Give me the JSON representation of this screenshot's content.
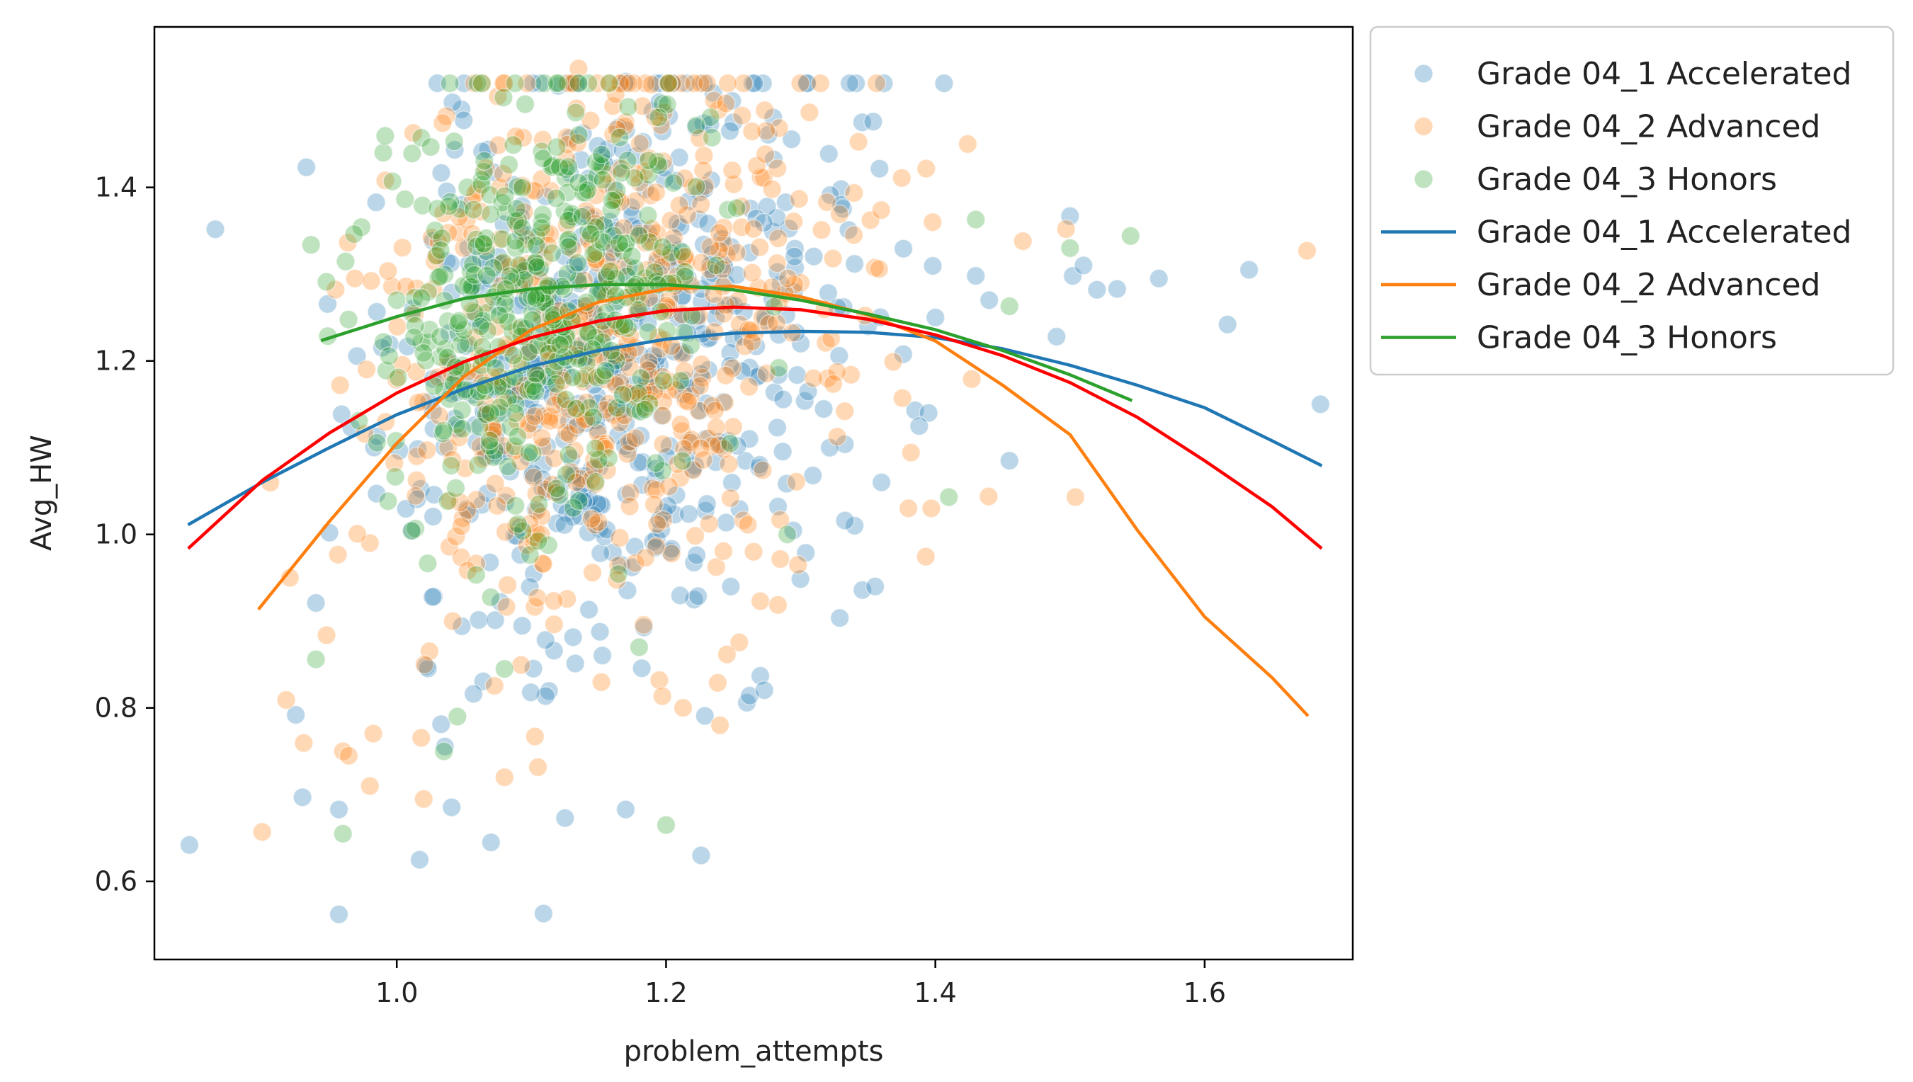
{
  "chart_data": {
    "type": "scatter",
    "title": "",
    "xlabel": "problem_attempts",
    "ylabel": "Avg_HW",
    "xlim": [
      0.82,
      1.71
    ],
    "ylim": [
      0.51,
      1.585
    ],
    "xticks": [
      1.0,
      1.2,
      1.4,
      1.6
    ],
    "xtick_labels": [
      "1.0",
      "1.2",
      "1.4",
      "1.6"
    ],
    "yticks": [
      0.6,
      0.8,
      1.0,
      1.2,
      1.4
    ],
    "ytick_labels": [
      "0.6",
      "0.8",
      "1.0",
      "1.2",
      "1.4"
    ],
    "grid": false,
    "legend_position": "outside-top-right",
    "colors": {
      "blue": "#1f77b4",
      "orange": "#ff7f0e",
      "green": "#2ca02c",
      "red": "#ff0000"
    },
    "scatter_series": [
      {
        "name": "Grade 04_1 Accelerated",
        "color": "#1f77b4",
        "generated": {
          "count": 560,
          "x_mean": 1.16,
          "x_sd": 0.085,
          "y_mean": 1.19,
          "y_sd": 0.17,
          "seed": 11
        },
        "points": [
          [
            0.846,
            0.642
          ],
          [
            0.957,
            0.562
          ],
          [
            1.109,
            0.563
          ],
          [
            1.017,
            0.625
          ],
          [
            1.226,
            0.63
          ],
          [
            0.93,
            0.697
          ],
          [
            0.925,
            0.792
          ],
          [
            0.95,
            1.002
          ],
          [
            0.94,
            0.921
          ],
          [
            0.957,
            0.683
          ],
          [
            1.07,
            0.645
          ],
          [
            1.125,
            0.673
          ],
          [
            1.17,
            0.683
          ],
          [
            1.27,
            0.837
          ],
          [
            1.26,
            0.806
          ],
          [
            1.17,
            1.522
          ],
          [
            1.048,
            1.49
          ],
          [
            1.19,
            1.488
          ],
          [
            1.25,
            1.475
          ],
          [
            1.33,
            1.398
          ],
          [
            1.4,
            1.25
          ],
          [
            1.43,
            1.298
          ],
          [
            1.44,
            1.27
          ],
          [
            1.455,
            1.085
          ],
          [
            1.49,
            1.228
          ],
          [
            1.5,
            1.367
          ],
          [
            1.52,
            1.282
          ],
          [
            1.535,
            1.283
          ],
          [
            1.566,
            1.295
          ],
          [
            1.617,
            1.242
          ],
          [
            1.633,
            1.305
          ],
          [
            1.686,
            1.15
          ],
          [
            1.502,
            1.298
          ],
          [
            1.51,
            1.31
          ],
          [
            1.34,
            1.01
          ],
          [
            1.36,
            1.06
          ],
          [
            1.385,
            1.143
          ],
          [
            1.395,
            1.14
          ],
          [
            1.3,
            1.22
          ],
          [
            1.35,
            1.24
          ]
        ]
      },
      {
        "name": "Grade 04_2 Advanced",
        "color": "#ff7f0e",
        "generated": {
          "count": 560,
          "x_mean": 1.15,
          "x_sd": 0.085,
          "y_mean": 1.2,
          "y_sd": 0.17,
          "seed": 23
        },
        "points": [
          [
            0.9,
            0.657
          ],
          [
            0.96,
            0.75
          ],
          [
            0.98,
            0.71
          ],
          [
            1.02,
            0.695
          ],
          [
            1.08,
            0.72
          ],
          [
            1.135,
            1.537
          ],
          [
            1.075,
            1.505
          ],
          [
            1.17,
            1.475
          ],
          [
            1.424,
            1.45
          ],
          [
            1.398,
            1.36
          ],
          [
            1.465,
            1.338
          ],
          [
            1.497,
            1.352
          ],
          [
            1.676,
            1.327
          ],
          [
            1.504,
            1.043
          ],
          [
            1.397,
            1.03
          ],
          [
            1.38,
            1.03
          ],
          [
            1.427,
            1.179
          ],
          [
            1.24,
            0.78
          ],
          [
            1.195,
            0.832
          ],
          [
            1.27,
            0.923
          ],
          [
            1.265,
            0.98
          ],
          [
            1.215,
            1.315
          ],
          [
            1.3,
            1.29
          ],
          [
            1.32,
            1.18
          ],
          [
            0.98,
            0.99
          ]
        ]
      },
      {
        "name": "Grade 04_3 Honors",
        "color": "#2ca02c",
        "generated": {
          "count": 420,
          "x_mean": 1.11,
          "x_sd": 0.06,
          "y_mean": 1.27,
          "y_sd": 0.12,
          "seed": 37
        },
        "points": [
          [
            0.96,
            0.655
          ],
          [
            1.2,
            0.665
          ],
          [
            0.94,
            0.856
          ],
          [
            1.035,
            0.75
          ],
          [
            1.045,
            0.79
          ],
          [
            1.08,
            0.845
          ],
          [
            1.43,
            1.363
          ],
          [
            1.545,
            1.344
          ],
          [
            1.455,
            1.263
          ],
          [
            1.5,
            1.33
          ],
          [
            1.41,
            1.043
          ],
          [
            1.29,
            1.0
          ],
          [
            1.18,
            0.87
          ],
          [
            1.0,
            1.27
          ],
          [
            0.99,
            1.44
          ]
        ]
      }
    ],
    "line_series": [
      {
        "name": "Grade 04_1 Accelerated",
        "color": "#1f77b4",
        "x": [
          0.846,
          0.9,
          0.95,
          1.0,
          1.05,
          1.1,
          1.15,
          1.2,
          1.25,
          1.3,
          1.35,
          1.4,
          1.45,
          1.5,
          1.55,
          1.6,
          1.65,
          1.686
        ],
        "y": [
          1.012,
          1.06,
          1.1,
          1.138,
          1.168,
          1.194,
          1.212,
          1.225,
          1.232,
          1.234,
          1.233,
          1.227,
          1.214,
          1.195,
          1.172,
          1.146,
          1.108,
          1.08
        ]
      },
      {
        "name": "Grade 04_2 Advanced",
        "color": "#ff7f0e",
        "x": [
          0.898,
          0.95,
          1.0,
          1.05,
          1.1,
          1.15,
          1.2,
          1.25,
          1.3,
          1.35,
          1.4,
          1.45,
          1.5,
          1.55,
          1.6,
          1.65,
          1.676
        ],
        "y": [
          0.915,
          1.015,
          1.105,
          1.182,
          1.236,
          1.268,
          1.283,
          1.286,
          1.274,
          1.253,
          1.223,
          1.172,
          1.115,
          1.005,
          0.905,
          0.835,
          0.792
        ]
      },
      {
        "name": "Grade 04_3 Honors",
        "color": "#2ca02c",
        "x": [
          0.945,
          1.0,
          1.05,
          1.1,
          1.15,
          1.2,
          1.25,
          1.3,
          1.35,
          1.4,
          1.45,
          1.5,
          1.545
        ],
        "y": [
          1.224,
          1.251,
          1.272,
          1.283,
          1.288,
          1.288,
          1.282,
          1.27,
          1.254,
          1.236,
          1.212,
          1.184,
          1.155
        ]
      },
      {
        "name": "overall-fit",
        "color": "#ff0000",
        "in_legend": false,
        "x": [
          0.846,
          0.9,
          0.95,
          1.0,
          1.05,
          1.1,
          1.15,
          1.2,
          1.25,
          1.3,
          1.35,
          1.4,
          1.45,
          1.5,
          1.55,
          1.6,
          1.65,
          1.686
        ],
        "y": [
          0.985,
          1.062,
          1.117,
          1.163,
          1.199,
          1.227,
          1.246,
          1.258,
          1.262,
          1.259,
          1.248,
          1.23,
          1.206,
          1.175,
          1.135,
          1.085,
          1.032,
          0.985
        ]
      }
    ],
    "legend": {
      "entries": [
        {
          "label": "Grade 04_1 Accelerated",
          "kind": "marker",
          "color": "#1f77b4"
        },
        {
          "label": "Grade 04_2 Advanced",
          "kind": "marker",
          "color": "#ff7f0e"
        },
        {
          "label": "Grade 04_3 Honors",
          "kind": "marker",
          "color": "#2ca02c"
        },
        {
          "label": "Grade 04_1 Accelerated",
          "kind": "line",
          "color": "#1f77b4"
        },
        {
          "label": "Grade 04_2 Advanced",
          "kind": "line",
          "color": "#ff7f0e"
        },
        {
          "label": "Grade 04_3 Honors",
          "kind": "line",
          "color": "#2ca02c"
        }
      ]
    }
  }
}
